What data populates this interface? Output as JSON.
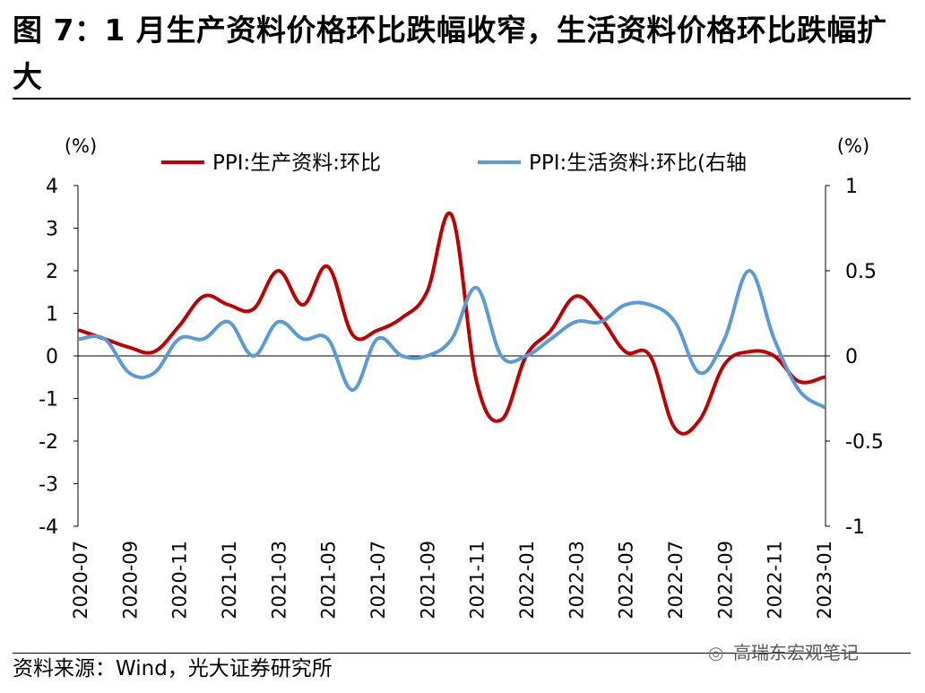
{
  "figure": {
    "title": "图 7：1 月生产资料价格环比跌幅收窄，生活资料价格环比跌幅扩大",
    "source": "资料来源：Wind，光大证券研究所",
    "watermark": "高瑞东宏观笔记"
  },
  "chart_data": {
    "type": "line",
    "title": "",
    "left_axis_unit": "(%)",
    "right_axis_unit": "(%)",
    "ylim_left": [
      -4,
      4
    ],
    "ylim_right": [
      -1,
      1
    ],
    "left_ticks": [
      "4",
      "3",
      "2",
      "1",
      "0",
      "-1",
      "-2",
      "-3",
      "-4"
    ],
    "right_ticks": [
      "1",
      "0.5",
      "0",
      "-0.5",
      "-1"
    ],
    "x_tick_labels": [
      "2020-07",
      "2020-09",
      "2020-11",
      "2021-01",
      "2021-03",
      "2021-05",
      "2021-07",
      "2021-09",
      "2021-11",
      "2022-01",
      "2022-03",
      "2022-05",
      "2022-07",
      "2022-09",
      "2022-11",
      "2023-01"
    ],
    "x": [
      "2020-07",
      "2020-08",
      "2020-09",
      "2020-10",
      "2020-11",
      "2020-12",
      "2021-01",
      "2021-02",
      "2021-03",
      "2021-04",
      "2021-05",
      "2021-06",
      "2021-07",
      "2021-08",
      "2021-09",
      "2021-10",
      "2021-11",
      "2021-12",
      "2022-01",
      "2022-02",
      "2022-03",
      "2022-04",
      "2022-05",
      "2022-06",
      "2022-07",
      "2022-08",
      "2022-09",
      "2022-10",
      "2022-11",
      "2022-12",
      "2023-01"
    ],
    "series": [
      {
        "name": "PPI:生产资料:环比",
        "axis": "left",
        "color": "#C00000",
        "values": [
          0.6,
          0.4,
          0.2,
          0.1,
          0.7,
          1.4,
          1.2,
          1.1,
          2.0,
          1.2,
          2.1,
          0.5,
          0.6,
          0.9,
          1.5,
          3.3,
          -0.6,
          -1.5,
          0.0,
          0.6,
          1.4,
          0.9,
          0.1,
          0.0,
          -1.7,
          -1.5,
          -0.2,
          0.1,
          0.0,
          -0.6,
          -0.5
        ]
      },
      {
        "name": "PPI:生活资料:环比(右轴",
        "axis": "right",
        "color": "#5B9BD5",
        "values": [
          0.1,
          0.1,
          -0.1,
          -0.1,
          0.1,
          0.1,
          0.2,
          0.0,
          0.2,
          0.1,
          0.1,
          -0.2,
          0.1,
          0.0,
          0.0,
          0.1,
          0.4,
          0.0,
          0.0,
          0.1,
          0.2,
          0.2,
          0.3,
          0.3,
          0.2,
          -0.1,
          0.1,
          0.5,
          0.1,
          -0.2,
          -0.3
        ]
      }
    ]
  }
}
